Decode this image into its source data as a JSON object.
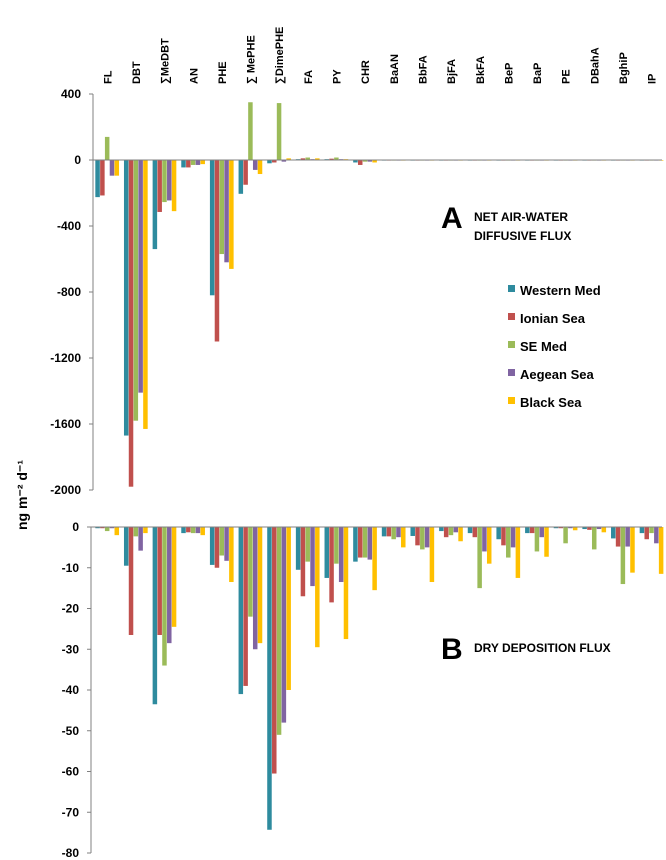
{
  "y_axis_label": "ng m⁻² d⁻¹",
  "legend": [
    {
      "name": "Western Med",
      "color": "#2e8b9e"
    },
    {
      "name": "Ionian Sea",
      "color": "#c0504d"
    },
    {
      "name": "SE Med",
      "color": "#9bbb59"
    },
    {
      "name": "Aegean Sea",
      "color": "#8064a2"
    },
    {
      "name": "Black Sea",
      "color": "#ffc000"
    }
  ],
  "chart_data": [
    {
      "type": "bar",
      "panel_letter": "A",
      "title_lines": [
        "NET AIR-WATER",
        "DIFFUSIVE FLUX"
      ],
      "categories": [
        "FL",
        "DBT",
        "∑MeDBT",
        "AN",
        "PHE",
        "∑ MePHE",
        "∑DimePHE",
        "FA",
        "PY",
        "CHR",
        "BaAN",
        "BbFA",
        "BjFA",
        "BkFA",
        "BeP",
        "BaP",
        "PE",
        "DBahA",
        "BghiP",
        "IP"
      ],
      "yticks": [
        400,
        0,
        -400,
        -800,
        -1200,
        -1600,
        -2000
      ],
      "ylim": [
        -2000,
        400
      ],
      "series": [
        {
          "name": "Western Med",
          "values": [
            -225,
            -1670,
            -540,
            -45,
            -820,
            -205,
            -20,
            5,
            5,
            -15,
            -3,
            -2,
            -2,
            -2,
            -2,
            -2,
            -1,
            -1,
            -1,
            -1
          ]
        },
        {
          "name": "Ionian Sea",
          "values": [
            -215,
            -1980,
            -315,
            -45,
            -1100,
            -150,
            -15,
            10,
            8,
            -30,
            -3,
            -2,
            -2,
            -2,
            -2,
            -2,
            -1,
            -1,
            -1,
            -1
          ]
        },
        {
          "name": "SE Med",
          "values": [
            140,
            -1580,
            -255,
            -30,
            -570,
            350,
            345,
            15,
            15,
            -10,
            -2,
            -2,
            -2,
            -2,
            -2,
            -1,
            -1,
            -1,
            -1,
            -1
          ]
        },
        {
          "name": "Aegean Sea",
          "values": [
            -95,
            -1410,
            -245,
            -30,
            -620,
            -60,
            -10,
            5,
            5,
            -10,
            -2,
            -2,
            -2,
            -2,
            -2,
            -1,
            -1,
            -1,
            -1,
            -1
          ]
        },
        {
          "name": "Black Sea",
          "values": [
            -95,
            -1630,
            -310,
            -25,
            -660,
            -85,
            10,
            10,
            5,
            -15,
            -2,
            -2,
            -2,
            -2,
            -2,
            -1,
            -1,
            -1,
            -1,
            -1
          ]
        }
      ]
    },
    {
      "type": "bar",
      "panel_letter": "B",
      "title_lines": [
        "DRY DEPOSITION  FLUX"
      ],
      "categories": [
        "FL",
        "DBT",
        "∑MeDBT",
        "AN",
        "PHE",
        "∑ MePHE",
        "∑DimePHE",
        "FA",
        "PY",
        "CHR",
        "BaAN",
        "BbFA",
        "BjFA",
        "BkFA",
        "BeP",
        "BaP",
        "PE",
        "DBahA",
        "BghiP",
        "IP"
      ],
      "yticks": [
        0,
        -10,
        -20,
        -30,
        -40,
        -50,
        -60,
        -70,
        -80
      ],
      "ylim": [
        -80,
        0
      ],
      "series": [
        {
          "name": "Western Med",
          "values": [
            -0.3,
            -9.5,
            -43.5,
            -1.5,
            -9.3,
            -41,
            -74.3,
            -10.5,
            -12.5,
            -8.5,
            -2.3,
            -2.2,
            -1,
            -1.5,
            -3,
            -1.5,
            -0.3,
            -0.5,
            -2.8,
            -1.5
          ]
        },
        {
          "name": "Ionian Sea",
          "values": [
            -0.3,
            -26.5,
            -26.5,
            -1.3,
            -10,
            -39,
            -60.5,
            -17,
            -18.5,
            -7.5,
            -2.3,
            -4.5,
            -2.5,
            -2.5,
            -4.5,
            -1.5,
            -0.3,
            -0.7,
            -4.8,
            -3
          ]
        },
        {
          "name": "SE Med",
          "values": [
            -1,
            -2.3,
            -34,
            -1.5,
            -7,
            -22,
            -51,
            -8.5,
            -9,
            -7.5,
            -3,
            -5.5,
            -2,
            -15,
            -7.5,
            -6,
            -4,
            -5.5,
            -14,
            -1.5
          ]
        },
        {
          "name": "Aegean Sea",
          "values": [
            -0.3,
            -5.8,
            -28.5,
            -1.5,
            -8.3,
            -30,
            -48,
            -14.5,
            -13.5,
            -8,
            -2.5,
            -5,
            -1.3,
            -6,
            -5,
            -2.5,
            -0.3,
            -0.5,
            -4.8,
            -4
          ]
        },
        {
          "name": "Black Sea",
          "values": [
            -2,
            -1.5,
            -24.5,
            -2,
            -13.5,
            -28.5,
            -40,
            -29.5,
            -27.5,
            -15.5,
            -5,
            -13.5,
            -3.5,
            -9,
            -12.5,
            -7.3,
            -0.8,
            -1.3,
            -11.2,
            -11.5
          ]
        }
      ]
    }
  ]
}
